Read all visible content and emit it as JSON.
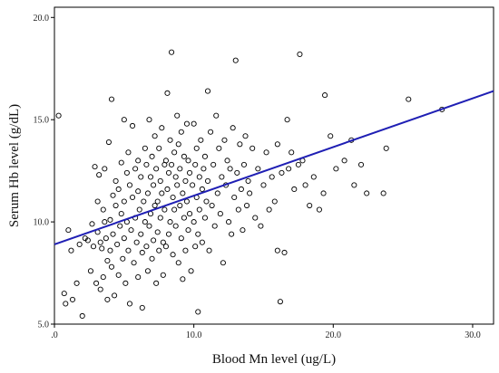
{
  "chart_data": {
    "type": "scatter",
    "title": "",
    "xlabel": "Blood Mn level (ug/L)",
    "ylabel": "Serum Hb level (g/dL)",
    "xlim": [
      0,
      31.5
    ],
    "ylim": [
      5.0,
      20.5
    ],
    "x_ticks": [
      {
        "value": 0,
        "label": ".0"
      },
      {
        "value": 10,
        "label": "10.0"
      },
      {
        "value": 20,
        "label": "20.0"
      },
      {
        "value": 30,
        "label": "30.0"
      }
    ],
    "y_ticks": [
      {
        "value": 5,
        "label": "5.0"
      },
      {
        "value": 10,
        "label": "10.0"
      },
      {
        "value": 15,
        "label": "15.0"
      },
      {
        "value": 20,
        "label": "20.0"
      }
    ],
    "grid": false,
    "legend": "none",
    "point_color": "#000000",
    "fit_color": "#1f1fb4",
    "fit_line": {
      "x": [
        0,
        31.5
      ],
      "y": [
        8.9,
        16.4
      ]
    },
    "series": [
      {
        "points": [
          [
            0.3,
            15.2
          ],
          [
            0.7,
            6.5
          ],
          [
            0.8,
            6.0
          ],
          [
            1.0,
            9.6
          ],
          [
            1.2,
            8.6
          ],
          [
            1.3,
            6.2
          ],
          [
            1.6,
            7.0
          ],
          [
            1.8,
            8.9
          ],
          [
            2.0,
            5.4
          ],
          [
            2.2,
            9.2
          ],
          [
            2.4,
            9.1
          ],
          [
            2.6,
            7.6
          ],
          [
            2.7,
            9.9
          ],
          [
            2.8,
            8.8
          ],
          [
            2.9,
            12.7
          ],
          [
            3.0,
            7.0
          ],
          [
            3.1,
            9.5
          ],
          [
            3.1,
            11.0
          ],
          [
            3.2,
            12.3
          ],
          [
            3.3,
            9.0
          ],
          [
            3.3,
            6.7
          ],
          [
            3.4,
            8.7
          ],
          [
            3.5,
            10.6
          ],
          [
            3.5,
            7.3
          ],
          [
            3.6,
            12.6
          ],
          [
            3.6,
            10.0
          ],
          [
            3.7,
            9.2
          ],
          [
            3.8,
            8.1
          ],
          [
            3.8,
            6.2
          ],
          [
            3.9,
            13.9
          ],
          [
            4.0,
            10.1
          ],
          [
            4.0,
            8.6
          ],
          [
            4.1,
            16.0
          ],
          [
            4.1,
            7.8
          ],
          [
            4.2,
            11.3
          ],
          [
            4.2,
            9.4
          ],
          [
            4.3,
            6.4
          ],
          [
            4.4,
            12.0
          ],
          [
            4.4,
            10.8
          ],
          [
            4.5,
            8.9
          ],
          [
            4.6,
            11.6
          ],
          [
            4.6,
            7.4
          ],
          [
            4.7,
            9.8
          ],
          [
            4.8,
            12.9
          ],
          [
            4.8,
            10.4
          ],
          [
            4.9,
            8.2
          ],
          [
            5.0,
            15.0
          ],
          [
            5.0,
            11.0
          ],
          [
            5.0,
            9.2
          ],
          [
            5.1,
            7.0
          ],
          [
            5.2,
            12.4
          ],
          [
            5.2,
            10.0
          ],
          [
            5.3,
            13.4
          ],
          [
            5.3,
            8.6
          ],
          [
            5.4,
            11.8
          ],
          [
            5.4,
            6.0
          ],
          [
            5.5,
            9.6
          ],
          [
            5.6,
            14.7
          ],
          [
            5.6,
            11.2
          ],
          [
            5.7,
            8.0
          ],
          [
            5.8,
            12.6
          ],
          [
            5.8,
            10.2
          ],
          [
            5.9,
            9.0
          ],
          [
            6.0,
            13.0
          ],
          [
            6.0,
            11.5
          ],
          [
            6.0,
            7.3
          ],
          [
            6.1,
            10.6
          ],
          [
            6.2,
            12.2
          ],
          [
            6.2,
            9.4
          ],
          [
            6.3,
            8.5
          ],
          [
            6.3,
            5.8
          ],
          [
            6.4,
            11.0
          ],
          [
            6.5,
            13.6
          ],
          [
            6.5,
            10.0
          ],
          [
            6.6,
            12.8
          ],
          [
            6.6,
            8.8
          ],
          [
            6.7,
            11.4
          ],
          [
            6.7,
            7.6
          ],
          [
            6.8,
            15.0
          ],
          [
            6.8,
            9.8
          ],
          [
            6.9,
            12.2
          ],
          [
            6.9,
            10.4
          ],
          [
            7.0,
            13.2
          ],
          [
            7.0,
            8.2
          ],
          [
            7.1,
            11.8
          ],
          [
            7.1,
            9.1
          ],
          [
            7.2,
            14.2
          ],
          [
            7.2,
            10.8
          ],
          [
            7.3,
            12.6
          ],
          [
            7.3,
            7.0
          ],
          [
            7.4,
            11.0
          ],
          [
            7.4,
            9.5
          ],
          [
            7.5,
            13.6
          ],
          [
            7.5,
            8.6
          ],
          [
            7.6,
            12.0
          ],
          [
            7.6,
            10.2
          ],
          [
            7.7,
            14.6
          ],
          [
            7.7,
            11.4
          ],
          [
            7.8,
            9.0
          ],
          [
            7.8,
            7.4
          ],
          [
            7.9,
            12.8
          ],
          [
            7.9,
            10.6
          ],
          [
            8.0,
            13.0
          ],
          [
            8.0,
            8.8
          ],
          [
            8.1,
            16.3
          ],
          [
            8.1,
            11.6
          ],
          [
            8.2,
            12.4
          ],
          [
            8.2,
            9.4
          ],
          [
            8.3,
            14.0
          ],
          [
            8.3,
            10.0
          ],
          [
            8.4,
            18.3
          ],
          [
            8.4,
            12.8
          ],
          [
            8.5,
            11.2
          ],
          [
            8.5,
            8.4
          ],
          [
            8.6,
            13.4
          ],
          [
            8.6,
            10.6
          ],
          [
            8.7,
            12.2
          ],
          [
            8.7,
            9.8
          ],
          [
            8.8,
            15.2
          ],
          [
            8.8,
            11.8
          ],
          [
            8.9,
            13.8
          ],
          [
            8.9,
            8.0
          ],
          [
            9.0,
            12.6
          ],
          [
            9.0,
            10.8
          ],
          [
            9.1,
            14.4
          ],
          [
            9.1,
            9.2
          ],
          [
            9.2,
            11.4
          ],
          [
            9.2,
            7.2
          ],
          [
            9.3,
            13.2
          ],
          [
            9.3,
            10.2
          ],
          [
            9.4,
            12.0
          ],
          [
            9.4,
            8.6
          ],
          [
            9.5,
            14.8
          ],
          [
            9.5,
            11.0
          ],
          [
            9.6,
            13.0
          ],
          [
            9.6,
            9.6
          ],
          [
            9.7,
            12.4
          ],
          [
            9.7,
            10.4
          ],
          [
            9.8,
            7.6
          ],
          [
            9.9,
            11.8
          ],
          [
            10.0,
            14.8
          ],
          [
            10.0,
            10.0
          ],
          [
            10.1,
            12.8
          ],
          [
            10.1,
            8.8
          ],
          [
            10.2,
            13.6
          ],
          [
            10.2,
            11.2
          ],
          [
            10.3,
            5.6
          ],
          [
            10.3,
            9.4
          ],
          [
            10.4,
            12.2
          ],
          [
            10.4,
            10.6
          ],
          [
            10.5,
            14.0
          ],
          [
            10.6,
            11.6
          ],
          [
            10.6,
            9.0
          ],
          [
            10.7,
            12.6
          ],
          [
            10.8,
            13.2
          ],
          [
            10.8,
            10.2
          ],
          [
            10.9,
            11.0
          ],
          [
            11.0,
            16.4
          ],
          [
            11.0,
            12.0
          ],
          [
            11.1,
            8.6
          ],
          [
            11.2,
            14.4
          ],
          [
            11.3,
            10.8
          ],
          [
            11.4,
            12.8
          ],
          [
            11.5,
            9.8
          ],
          [
            11.6,
            15.2
          ],
          [
            11.7,
            11.4
          ],
          [
            11.8,
            13.6
          ],
          [
            11.9,
            10.4
          ],
          [
            12.0,
            12.2
          ],
          [
            12.1,
            8.0
          ],
          [
            12.2,
            14.0
          ],
          [
            12.3,
            11.8
          ],
          [
            12.4,
            13.0
          ],
          [
            12.5,
            10.0
          ],
          [
            12.6,
            12.6
          ],
          [
            12.7,
            9.4
          ],
          [
            12.8,
            14.6
          ],
          [
            12.9,
            11.2
          ],
          [
            13.0,
            17.9
          ],
          [
            13.1,
            12.4
          ],
          [
            13.2,
            10.6
          ],
          [
            13.3,
            13.8
          ],
          [
            13.4,
            11.6
          ],
          [
            13.5,
            9.6
          ],
          [
            13.6,
            12.8
          ],
          [
            13.7,
            14.2
          ],
          [
            13.8,
            10.8
          ],
          [
            13.9,
            12.0
          ],
          [
            14.0,
            11.4
          ],
          [
            14.2,
            13.6
          ],
          [
            14.4,
            10.2
          ],
          [
            14.6,
            12.6
          ],
          [
            14.8,
            9.8
          ],
          [
            15.0,
            11.8
          ],
          [
            15.2,
            13.4
          ],
          [
            15.4,
            10.6
          ],
          [
            15.6,
            12.2
          ],
          [
            15.8,
            11.0
          ],
          [
            16.0,
            8.6
          ],
          [
            16.0,
            13.8
          ],
          [
            16.2,
            6.1
          ],
          [
            16.3,
            12.4
          ],
          [
            16.5,
            8.5
          ],
          [
            16.7,
            15.0
          ],
          [
            16.8,
            12.6
          ],
          [
            17.0,
            13.4
          ],
          [
            17.2,
            11.6
          ],
          [
            17.5,
            12.8
          ],
          [
            17.6,
            18.2
          ],
          [
            17.8,
            13.0
          ],
          [
            18.0,
            11.8
          ],
          [
            18.3,
            10.8
          ],
          [
            18.6,
            12.2
          ],
          [
            19.0,
            10.6
          ],
          [
            19.3,
            11.4
          ],
          [
            19.4,
            16.2
          ],
          [
            19.8,
            14.2
          ],
          [
            20.2,
            12.6
          ],
          [
            20.8,
            13.0
          ],
          [
            21.3,
            14.0
          ],
          [
            21.5,
            11.8
          ],
          [
            22.0,
            12.8
          ],
          [
            22.4,
            11.4
          ],
          [
            23.6,
            11.4
          ],
          [
            23.8,
            13.6
          ],
          [
            25.4,
            16.0
          ],
          [
            27.8,
            15.5
          ]
        ]
      }
    ]
  }
}
